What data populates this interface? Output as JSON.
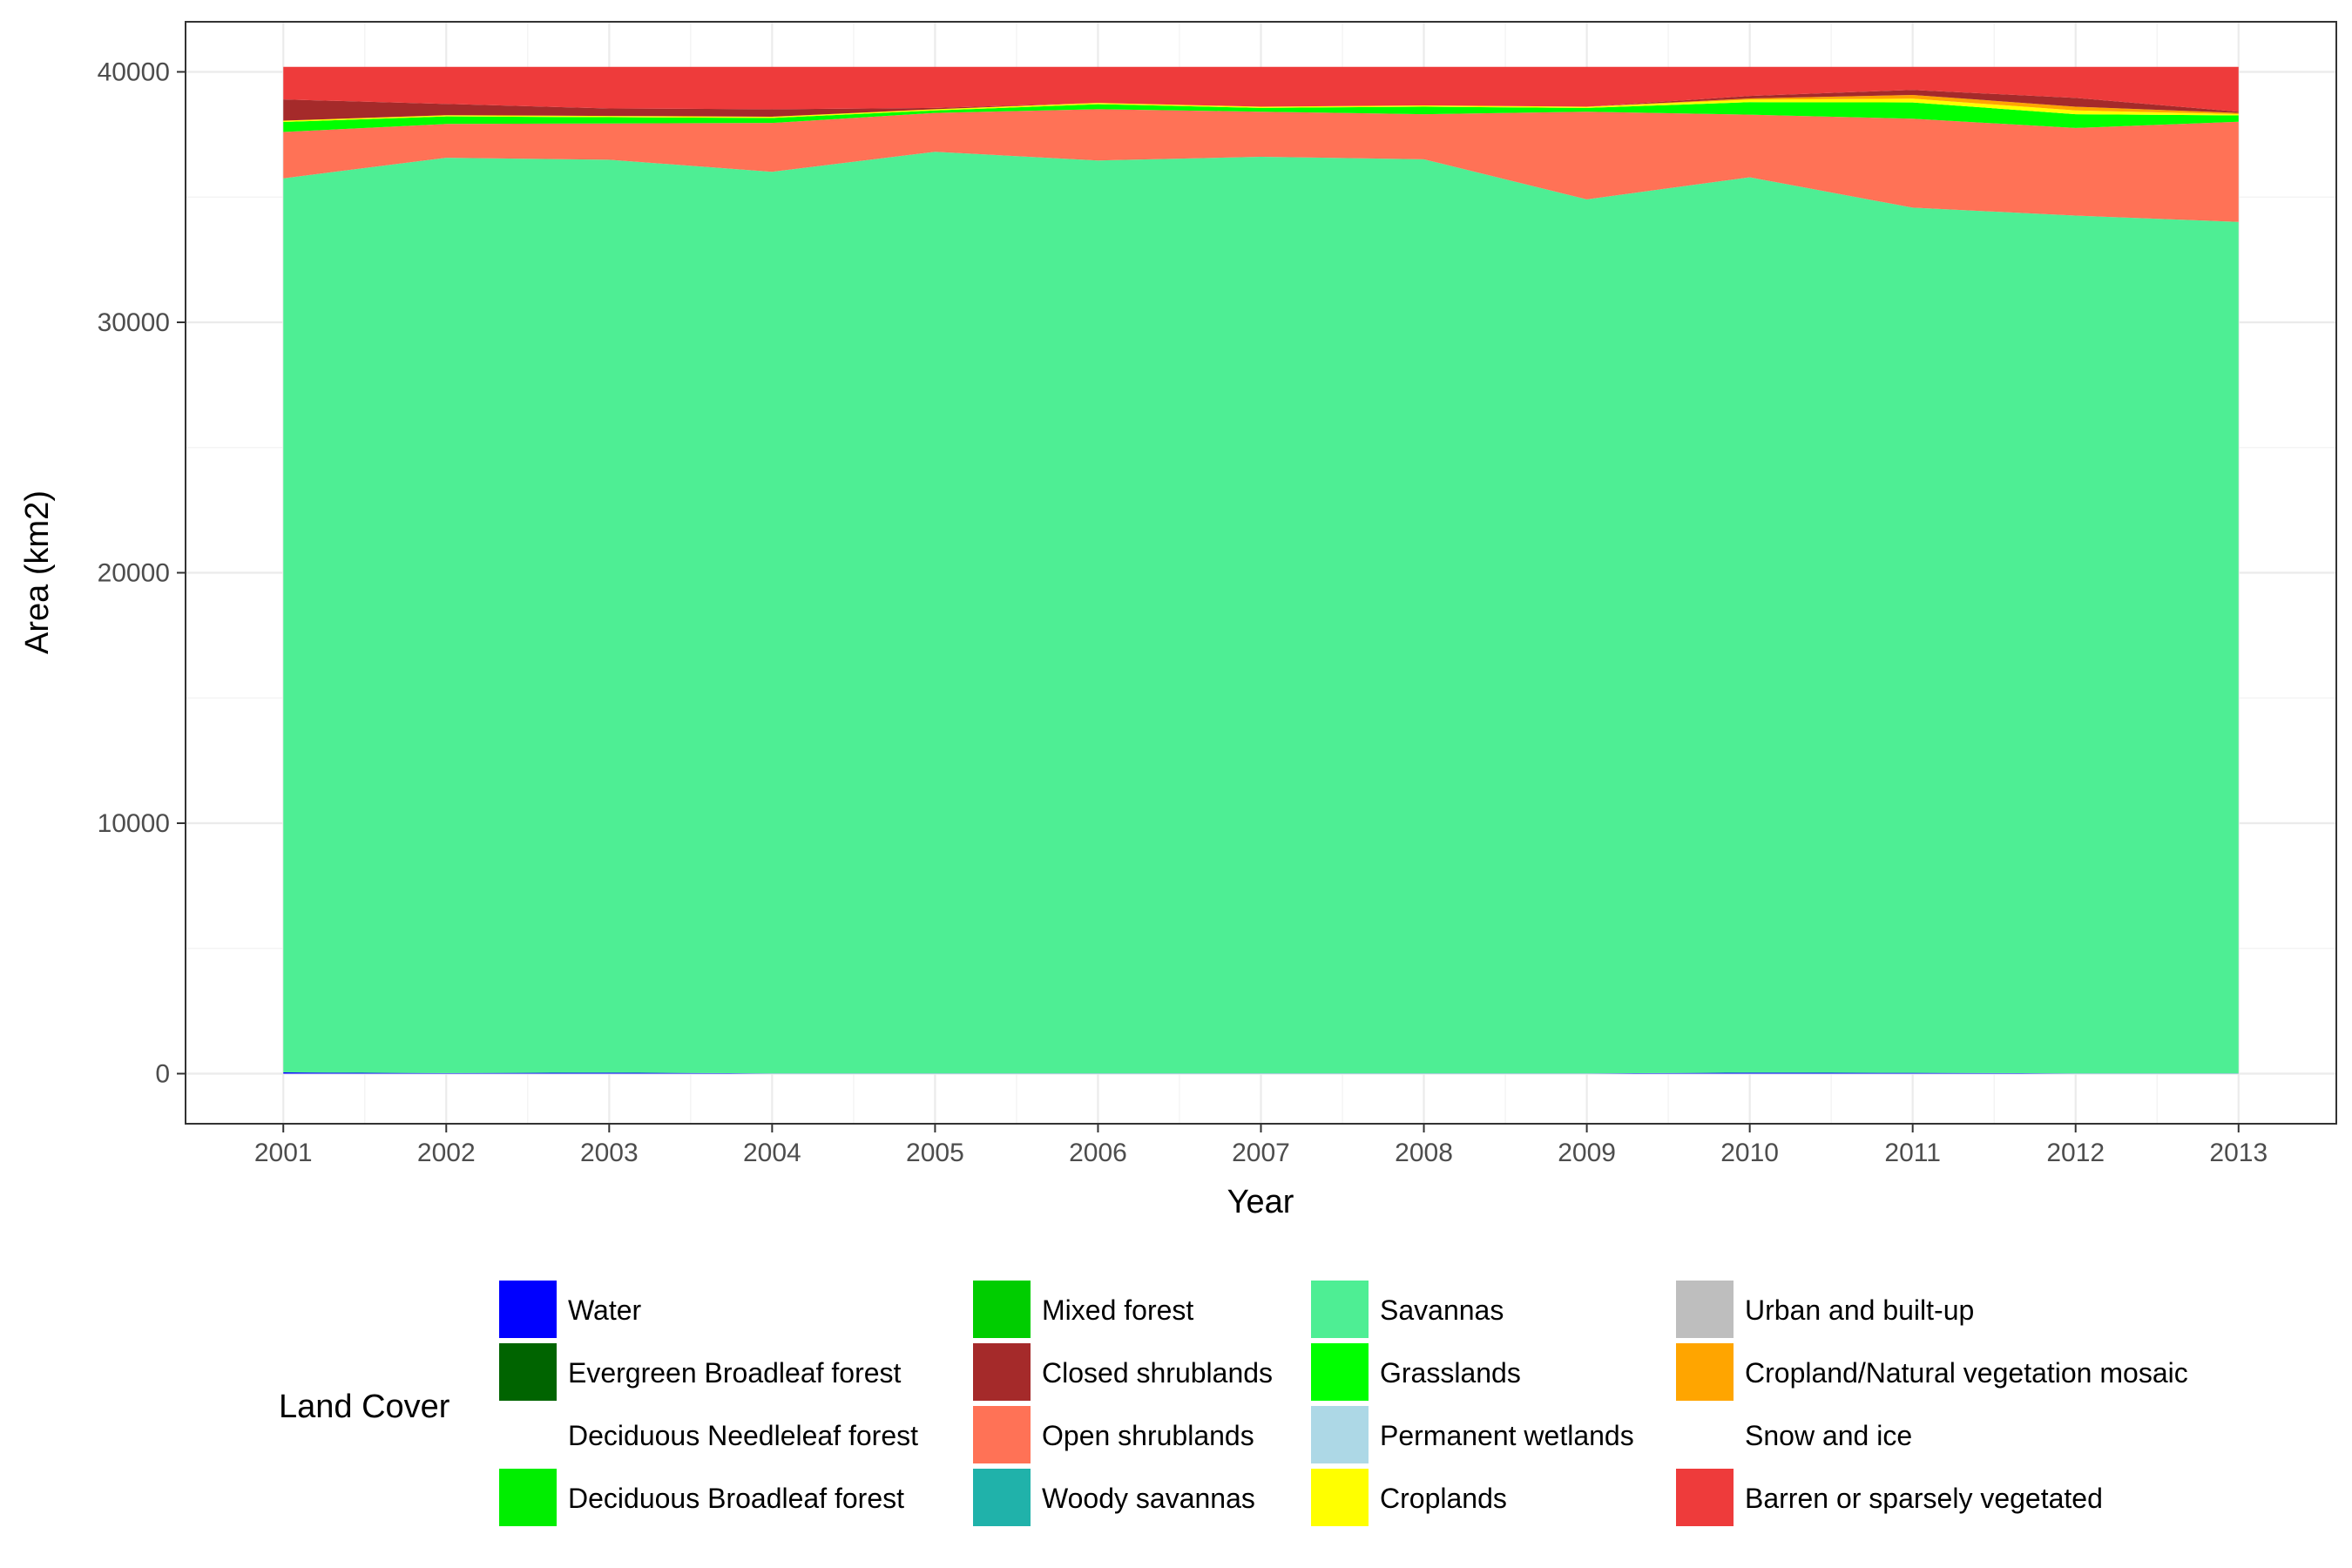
{
  "chart_data": {
    "type": "area",
    "stacked": true,
    "xlabel": "Year",
    "ylabel": "Area (km2)",
    "x": [
      2001,
      2002,
      2003,
      2004,
      2005,
      2006,
      2007,
      2008,
      2009,
      2010,
      2011,
      2012,
      2013
    ],
    "xlim": [
      2000.4,
      2013.6
    ],
    "ylim": [
      -2000,
      42000
    ],
    "y_ticks": [
      0,
      10000,
      20000,
      30000,
      40000
    ],
    "grid": true,
    "legend": {
      "title": "Land Cover",
      "position": "bottom",
      "columns": 4
    },
    "series": [
      {
        "name": "Water",
        "color": "#0000ff",
        "values": [
          50,
          20,
          40,
          10,
          10,
          10,
          10,
          10,
          10,
          40,
          30,
          10,
          10
        ]
      },
      {
        "name": "Evergreen Broadleaf forest",
        "color": "#006400",
        "values": [
          0,
          0,
          0,
          0,
          0,
          0,
          0,
          0,
          0,
          0,
          0,
          0,
          0
        ]
      },
      {
        "name": "Deciduous Needleleaf forest",
        "color": "#ffffff",
        "values": [
          0,
          0,
          0,
          0,
          0,
          0,
          0,
          0,
          0,
          0,
          0,
          0,
          0
        ]
      },
      {
        "name": "Deciduous Broadleaf forest",
        "color": "#00ee00",
        "values": [
          0,
          0,
          0,
          0,
          0,
          0,
          0,
          0,
          0,
          0,
          0,
          0,
          0
        ]
      },
      {
        "name": "Mixed forest",
        "color": "#00cd00",
        "values": [
          0,
          0,
          0,
          0,
          0,
          0,
          0,
          0,
          0,
          0,
          0,
          0,
          0
        ]
      },
      {
        "name": "Woody savannas",
        "color": "#20b2aa",
        "values": [
          0,
          0,
          0,
          0,
          0,
          0,
          0,
          0,
          0,
          0,
          0,
          0,
          0
        ]
      },
      {
        "name": "Savannas",
        "color": "#4eee94",
        "values": [
          35700,
          36550,
          36450,
          36000,
          36800,
          36450,
          36600,
          36500,
          34900,
          35750,
          34550,
          34250,
          34000
        ]
      },
      {
        "name": "Permanent wetlands",
        "color": "#add8e6",
        "values": [
          0,
          0,
          0,
          0,
          0,
          0,
          0,
          0,
          0,
          0,
          0,
          0,
          0
        ]
      },
      {
        "name": "Open shrublands",
        "color": "#ff7256",
        "values": [
          1850,
          1350,
          1450,
          1950,
          1550,
          2050,
          1800,
          1800,
          3500,
          2500,
          3550,
          3500,
          4000
        ]
      },
      {
        "name": "Grasslands",
        "color": "#00ff00",
        "values": [
          400,
          300,
          250,
          200,
          100,
          200,
          150,
          300,
          150,
          500,
          650,
          550,
          250
        ]
      },
      {
        "name": "Croplands",
        "color": "#ffff00",
        "values": [
          50,
          50,
          50,
          50,
          50,
          50,
          50,
          50,
          50,
          100,
          150,
          150,
          50
        ]
      },
      {
        "name": "Urban and built-up",
        "color": "#bebebe",
        "values": [
          0,
          0,
          0,
          0,
          0,
          0,
          0,
          0,
          0,
          0,
          0,
          0,
          0
        ]
      },
      {
        "name": "Cropland/Natural vegetation mosaic",
        "color": "#ffa500",
        "values": [
          0,
          0,
          0,
          0,
          0,
          0,
          0,
          0,
          0,
          50,
          150,
          150,
          50
        ]
      },
      {
        "name": "Snow and ice",
        "color": "#ffffff",
        "values": [
          0,
          0,
          0,
          0,
          0,
          0,
          0,
          0,
          0,
          0,
          0,
          0,
          0
        ]
      },
      {
        "name": "Closed shrublands",
        "color": "#a52a2a",
        "values": [
          850,
          450,
          300,
          300,
          50,
          0,
          0,
          0,
          0,
          100,
          200,
          350,
          50
        ]
      },
      {
        "name": "Barren or sparsely vegetated",
        "color": "#ee3b3b",
        "values": [
          1300,
          1480,
          1660,
          1690,
          1640,
          1440,
          1590,
          1540,
          1590,
          1160,
          920,
          1240,
          1790
        ]
      }
    ]
  }
}
